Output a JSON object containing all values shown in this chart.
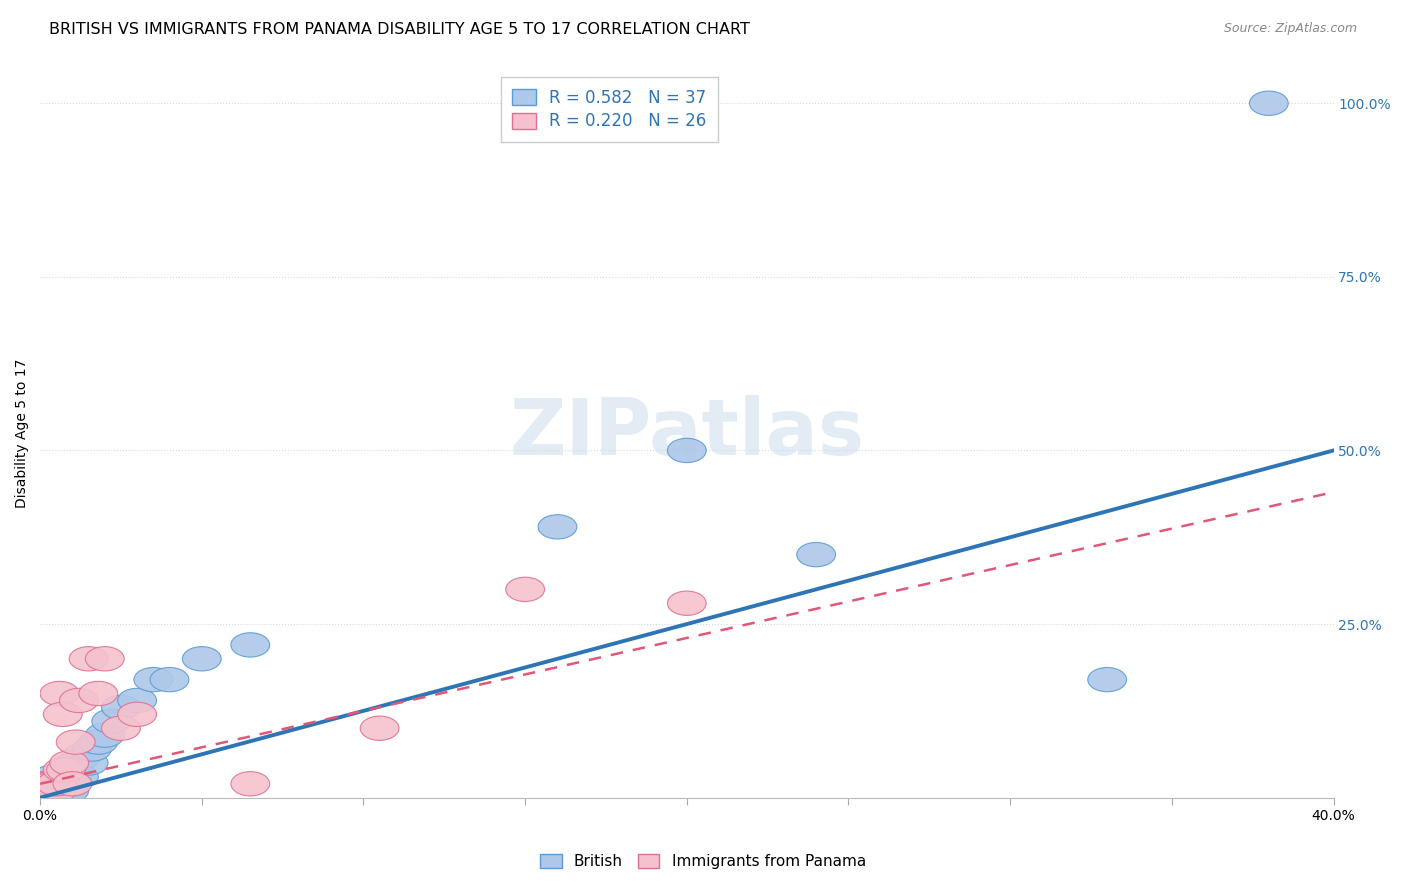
{
  "title": "BRITISH VS IMMIGRANTS FROM PANAMA DISABILITY AGE 5 TO 17 CORRELATION CHART",
  "source": "Source: ZipAtlas.com",
  "ylabel": "Disability Age 5 to 17",
  "xlim": [
    0.0,
    0.4
  ],
  "ylim": [
    0.0,
    1.05
  ],
  "yticks": [
    0.0,
    0.25,
    0.5,
    0.75,
    1.0
  ],
  "ytick_labels": [
    "",
    "25.0%",
    "50.0%",
    "75.0%",
    "100.0%"
  ],
  "xticks": [
    0.0,
    0.05,
    0.1,
    0.15,
    0.2,
    0.25,
    0.3,
    0.35,
    0.4
  ],
  "xtick_labels": [
    "0.0%",
    "",
    "",
    "",
    "",
    "",
    "",
    "",
    "40.0%"
  ],
  "british_color": "#adc8e8",
  "british_edge_color": "#5b9bd5",
  "panama_color": "#f4c2ce",
  "panama_edge_color": "#e07090",
  "line_british_color": "#2e75b6",
  "line_panama_color": "#e05878",
  "legend_R_british": "R = 0.582",
  "legend_N_british": "N = 37",
  "legend_R_panama": "R = 0.220",
  "legend_N_panama": "N = 26",
  "watermark": "ZIPatlas",
  "british_x": [
    0.001,
    0.002,
    0.002,
    0.003,
    0.003,
    0.004,
    0.004,
    0.005,
    0.005,
    0.006,
    0.006,
    0.007,
    0.007,
    0.008,
    0.008,
    0.009,
    0.009,
    0.01,
    0.011,
    0.012,
    0.013,
    0.015,
    0.016,
    0.018,
    0.02,
    0.022,
    0.025,
    0.03,
    0.035,
    0.04,
    0.05,
    0.065,
    0.16,
    0.2,
    0.24,
    0.33,
    0.38
  ],
  "british_y": [
    0.01,
    0.01,
    0.02,
    0.01,
    0.02,
    0.01,
    0.03,
    0.01,
    0.02,
    0.01,
    0.02,
    0.01,
    0.02,
    0.01,
    0.03,
    0.01,
    0.02,
    0.03,
    0.05,
    0.03,
    0.06,
    0.05,
    0.07,
    0.08,
    0.09,
    0.11,
    0.13,
    0.14,
    0.17,
    0.17,
    0.2,
    0.22,
    0.39,
    0.5,
    0.35,
    0.17,
    1.0
  ],
  "panama_x": [
    0.001,
    0.001,
    0.002,
    0.002,
    0.003,
    0.003,
    0.004,
    0.005,
    0.005,
    0.006,
    0.007,
    0.007,
    0.008,
    0.009,
    0.01,
    0.011,
    0.012,
    0.015,
    0.018,
    0.02,
    0.025,
    0.03,
    0.065,
    0.105,
    0.15,
    0.2
  ],
  "panama_y": [
    0.01,
    0.02,
    0.01,
    0.02,
    0.01,
    0.02,
    0.02,
    0.01,
    0.02,
    0.15,
    0.04,
    0.12,
    0.04,
    0.05,
    0.02,
    0.08,
    0.14,
    0.2,
    0.15,
    0.2,
    0.1,
    0.12,
    0.02,
    0.1,
    0.3,
    0.28
  ],
  "background_color": "#ffffff",
  "grid_color": "#d0d8e8",
  "title_fontsize": 11.5,
  "axis_label_fontsize": 10,
  "tick_fontsize": 10,
  "legend_fontsize": 12
}
